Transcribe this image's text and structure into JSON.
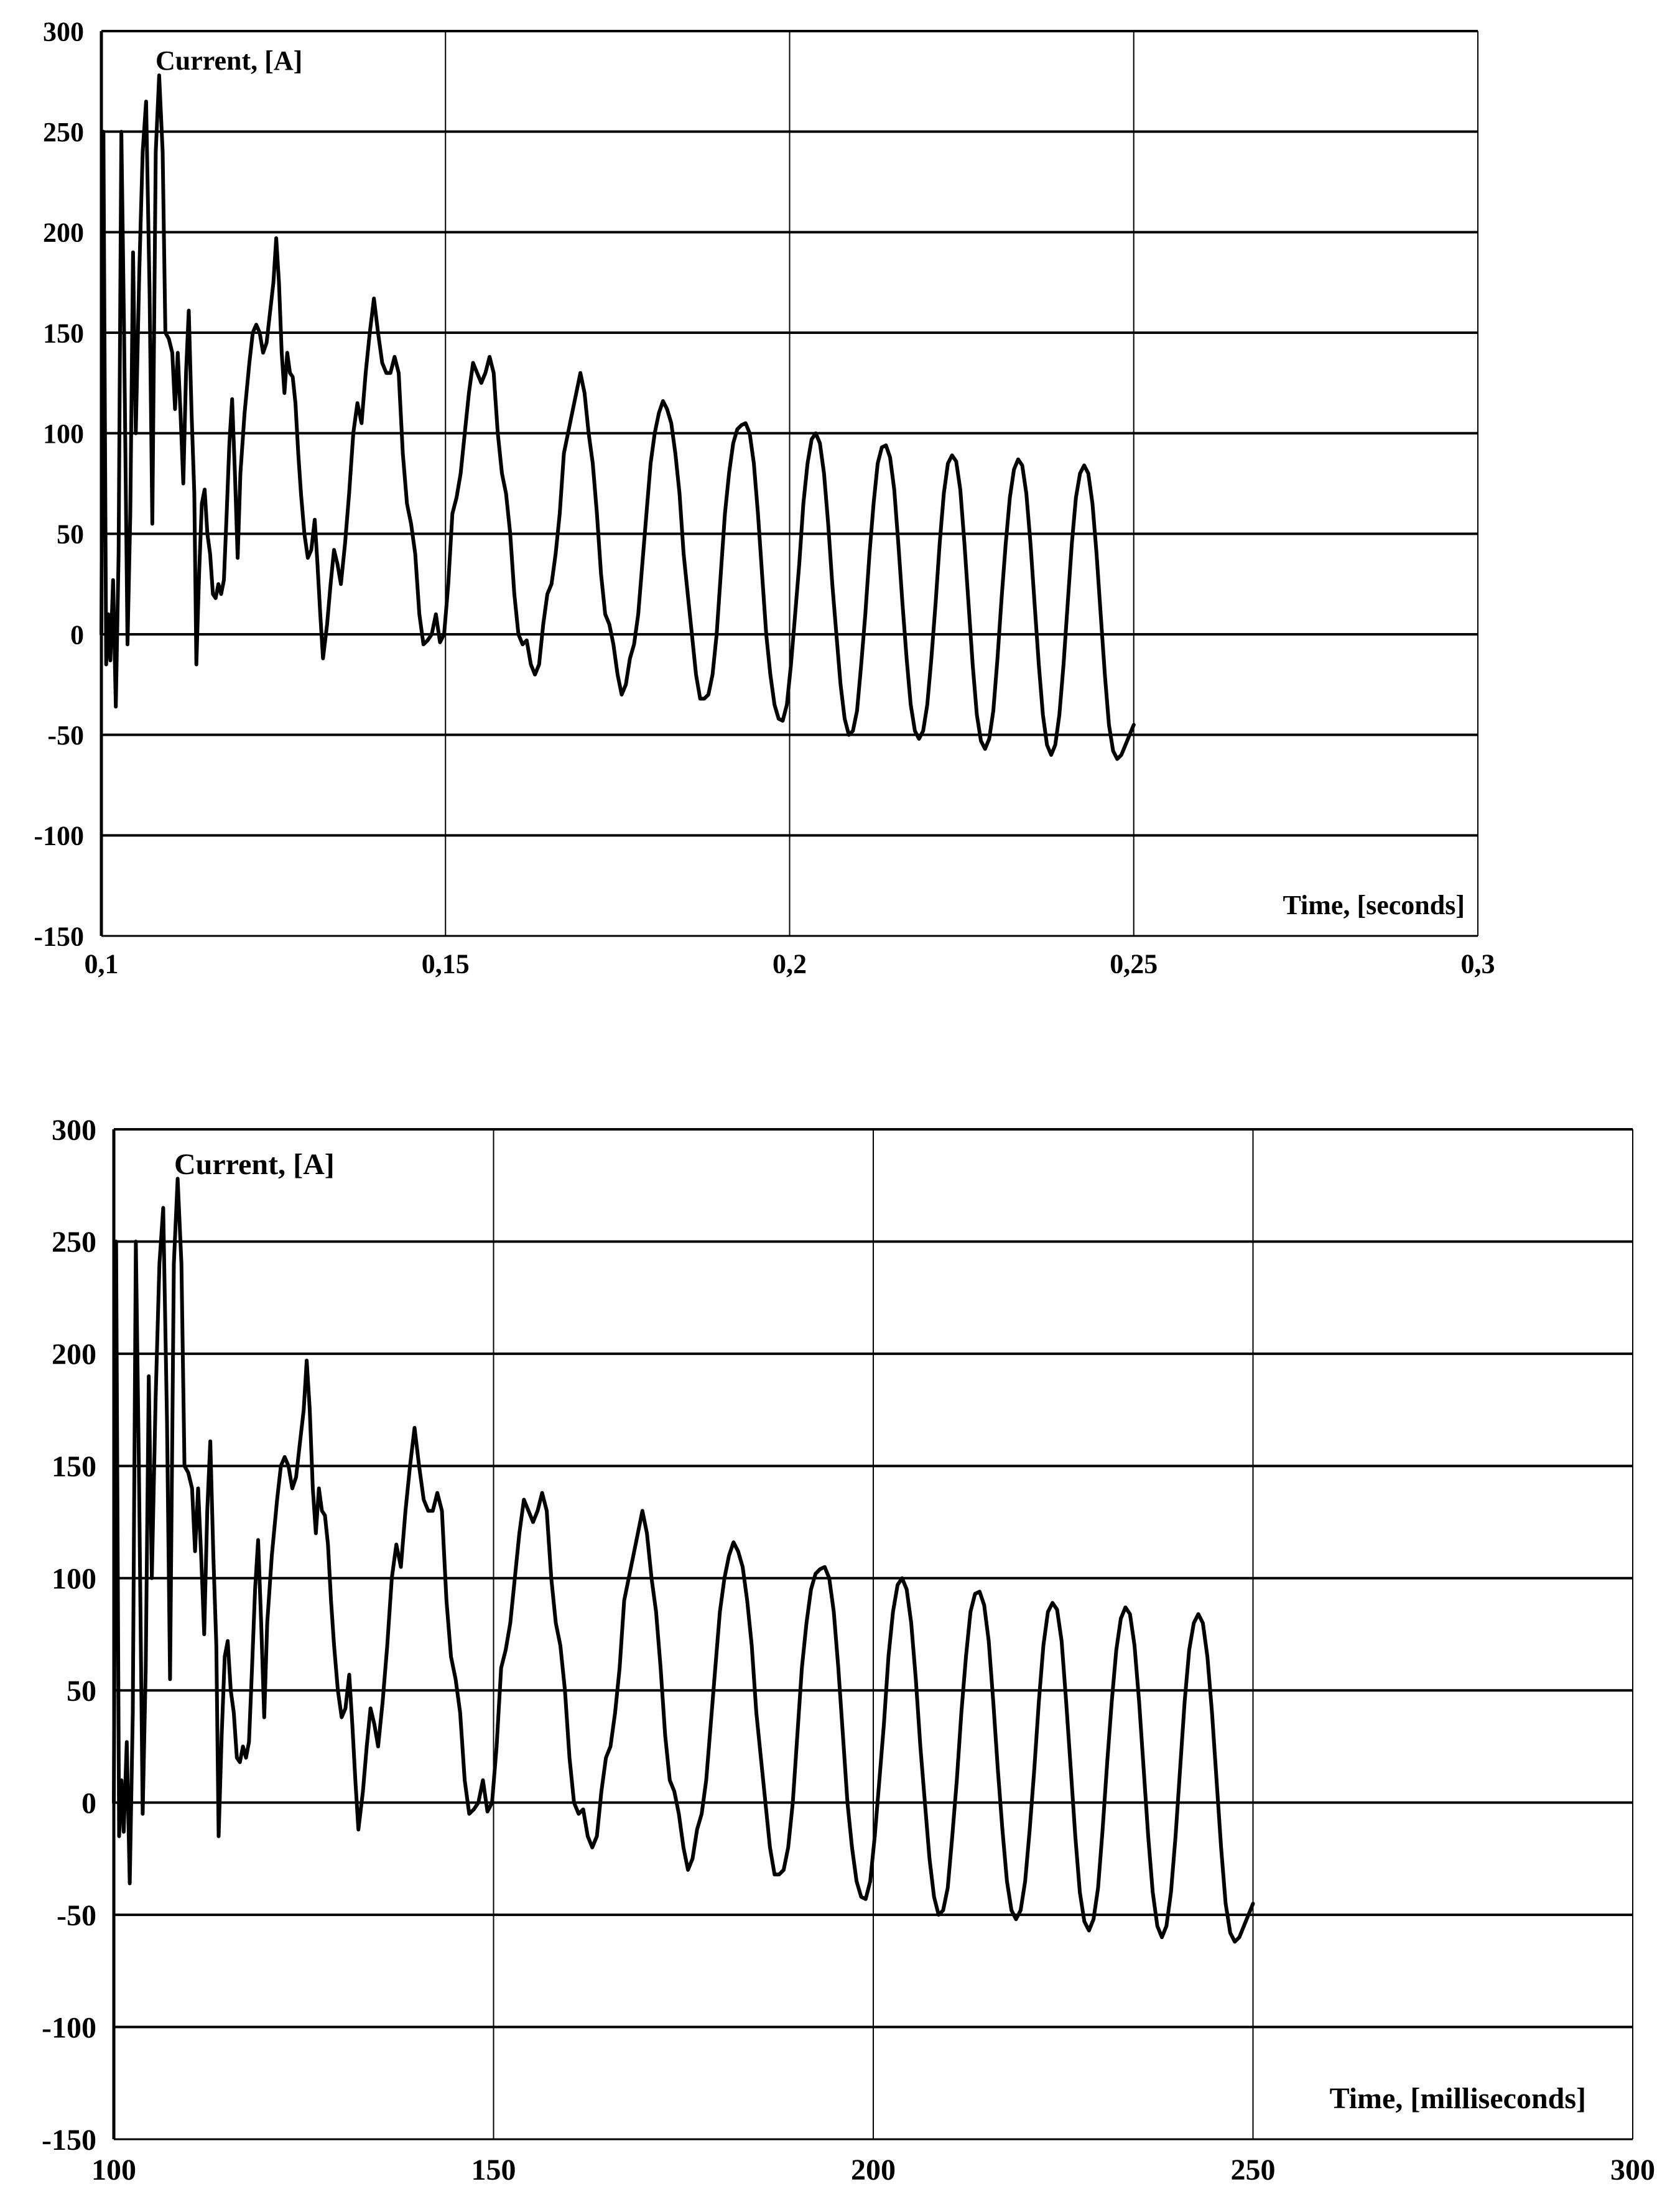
{
  "chart_data": [
    {
      "type": "line",
      "title": "",
      "ylabel": "Current,  [A]",
      "xlabel": "Time, [seconds]",
      "xlim": [
        0.1,
        0.3
      ],
      "ylim": [
        -150,
        300
      ],
      "x_ticks": [
        "0,1",
        "0,15",
        "0,2",
        "0,25",
        "0,3"
      ],
      "y_ticks": [
        "300",
        "250",
        "200",
        "150",
        "100",
        "50",
        "0",
        "-50",
        "-100",
        "-150"
      ],
      "x_unit_scale": 0.001,
      "grid": true,
      "legend": "none",
      "series": [
        {
          "color": "#000000",
          "points": [
            [
              100,
              0
            ],
            [
              100.3,
              250
            ],
            [
              100.7,
              -15
            ],
            [
              101,
              10
            ],
            [
              101.3,
              -13
            ],
            [
              101.7,
              27
            ],
            [
              102.1,
              -36
            ],
            [
              102.5,
              40
            ],
            [
              102.9,
              250
            ],
            [
              103.3,
              150
            ],
            [
              103.8,
              -5
            ],
            [
              104.2,
              60
            ],
            [
              104.6,
              190
            ],
            [
              105,
              100
            ],
            [
              105.5,
              180
            ],
            [
              106,
              240
            ],
            [
              106.5,
              265
            ],
            [
              107,
              170
            ],
            [
              107.4,
              55
            ],
            [
              107.9,
              240
            ],
            [
              108.4,
              278
            ],
            [
              108.9,
              240
            ],
            [
              109.3,
              150
            ],
            [
              109.8,
              147
            ],
            [
              110.3,
              140
            ],
            [
              110.7,
              112
            ],
            [
              111.1,
              140
            ],
            [
              111.5,
              110
            ],
            [
              111.9,
              75
            ],
            [
              112.3,
              130
            ],
            [
              112.7,
              161
            ],
            [
              113.1,
              110
            ],
            [
              113.5,
              70
            ],
            [
              113.8,
              -15
            ],
            [
              114.2,
              30
            ],
            [
              114.6,
              65
            ],
            [
              115,
              72
            ],
            [
              115.4,
              50
            ],
            [
              115.8,
              40
            ],
            [
              116.2,
              20
            ],
            [
              116.6,
              18
            ],
            [
              117,
              25
            ],
            [
              117.4,
              20
            ],
            [
              117.8,
              27
            ],
            [
              118.2,
              60
            ],
            [
              118.6,
              95
            ],
            [
              119,
              117
            ],
            [
              119.4,
              80
            ],
            [
              119.8,
              38
            ],
            [
              120.2,
              80
            ],
            [
              120.8,
              110
            ],
            [
              121.5,
              135
            ],
            [
              122,
              150
            ],
            [
              122.5,
              154
            ],
            [
              123,
              150
            ],
            [
              123.5,
              140
            ],
            [
              124,
              145
            ],
            [
              124.5,
              160
            ],
            [
              125,
              175
            ],
            [
              125.4,
              197
            ],
            [
              125.8,
              175
            ],
            [
              126.2,
              140
            ],
            [
              126.6,
              120
            ],
            [
              127,
              140
            ],
            [
              127.4,
              130
            ],
            [
              127.8,
              128
            ],
            [
              128.2,
              115
            ],
            [
              128.6,
              90
            ],
            [
              129,
              70
            ],
            [
              129.5,
              50
            ],
            [
              130,
              38
            ],
            [
              130.5,
              42
            ],
            [
              131,
              57
            ],
            [
              131.4,
              35
            ],
            [
              131.8,
              10
            ],
            [
              132.2,
              -12
            ],
            [
              132.8,
              5
            ],
            [
              133.3,
              25
            ],
            [
              133.8,
              42
            ],
            [
              134.3,
              35
            ],
            [
              134.8,
              25
            ],
            [
              135.4,
              45
            ],
            [
              136,
              70
            ],
            [
              136.6,
              100
            ],
            [
              137.2,
              115
            ],
            [
              137.8,
              105
            ],
            [
              138.4,
              130
            ],
            [
              139,
              150
            ],
            [
              139.6,
              167
            ],
            [
              140.2,
              150
            ],
            [
              140.8,
              135
            ],
            [
              141.4,
              130
            ],
            [
              142,
              130
            ],
            [
              142.6,
              138
            ],
            [
              143.2,
              130
            ],
            [
              143.8,
              90
            ],
            [
              144.4,
              65
            ],
            [
              145,
              55
            ],
            [
              145.6,
              40
            ],
            [
              146.2,
              10
            ],
            [
              146.8,
              -5
            ],
            [
              147.4,
              -3
            ],
            [
              148,
              0
            ],
            [
              148.6,
              10
            ],
            [
              149.2,
              -4
            ],
            [
              149.8,
              0
            ],
            [
              150.4,
              25
            ],
            [
              151,
              60
            ],
            [
              151.6,
              68
            ],
            [
              152.2,
              80
            ],
            [
              152.8,
              100
            ],
            [
              153.4,
              120
            ],
            [
              154,
              135
            ],
            [
              154.6,
              130
            ],
            [
              155.2,
              125
            ],
            [
              155.8,
              130
            ],
            [
              156.4,
              138
            ],
            [
              157,
              130
            ],
            [
              157.6,
              100
            ],
            [
              158.2,
              80
            ],
            [
              158.8,
              70
            ],
            [
              159.4,
              50
            ],
            [
              160,
              20
            ],
            [
              160.6,
              0
            ],
            [
              161.2,
              -5
            ],
            [
              161.8,
              -3
            ],
            [
              162.4,
              -15
            ],
            [
              163,
              -20
            ],
            [
              163.6,
              -15
            ],
            [
              164.2,
              5
            ],
            [
              164.8,
              20
            ],
            [
              165.4,
              25
            ],
            [
              166,
              40
            ],
            [
              166.6,
              60
            ],
            [
              167.2,
              90
            ],
            [
              167.8,
              100
            ],
            [
              168.4,
              110
            ],
            [
              169,
              120
            ],
            [
              169.6,
              130
            ],
            [
              170.2,
              120
            ],
            [
              170.8,
              100
            ],
            [
              171.4,
              85
            ],
            [
              172,
              60
            ],
            [
              172.6,
              30
            ],
            [
              173.2,
              10
            ],
            [
              173.8,
              5
            ],
            [
              174.4,
              -5
            ],
            [
              175,
              -20
            ],
            [
              175.6,
              -30
            ],
            [
              176.2,
              -25
            ],
            [
              176.8,
              -12
            ],
            [
              177.4,
              -5
            ],
            [
              178,
              10
            ],
            [
              178.6,
              35
            ],
            [
              179.2,
              60
            ],
            [
              179.8,
              85
            ],
            [
              180.4,
              100
            ],
            [
              181,
              110
            ],
            [
              181.6,
              116
            ],
            [
              182.2,
              112
            ],
            [
              182.8,
              105
            ],
            [
              183.4,
              90
            ],
            [
              184,
              70
            ],
            [
              184.6,
              40
            ],
            [
              185.2,
              20
            ],
            [
              185.8,
              0
            ],
            [
              186.4,
              -20
            ],
            [
              187,
              -32
            ],
            [
              187.6,
              -32
            ],
            [
              188.2,
              -30
            ],
            [
              188.8,
              -20
            ],
            [
              189.4,
              0
            ],
            [
              190,
              30
            ],
            [
              190.6,
              60
            ],
            [
              191.2,
              80
            ],
            [
              191.8,
              95
            ],
            [
              192.4,
              102
            ],
            [
              193,
              104
            ],
            [
              193.6,
              105
            ],
            [
              194.2,
              100
            ],
            [
              194.8,
              85
            ],
            [
              195.4,
              60
            ],
            [
              196,
              30
            ],
            [
              196.6,
              0
            ],
            [
              197.2,
              -20
            ],
            [
              197.8,
              -35
            ],
            [
              198.4,
              -42
            ],
            [
              199,
              -43
            ],
            [
              199.6,
              -35
            ],
            [
              200.2,
              -15
            ],
            [
              200.8,
              10
            ],
            [
              201.4,
              35
            ],
            [
              202,
              65
            ],
            [
              202.6,
              85
            ],
            [
              203.2,
              97
            ],
            [
              203.8,
              100
            ],
            [
              204.4,
              95
            ],
            [
              205,
              80
            ],
            [
              205.6,
              55
            ],
            [
              206.2,
              25
            ],
            [
              206.8,
              0
            ],
            [
              207.4,
              -25
            ],
            [
              208,
              -42
            ],
            [
              208.6,
              -50
            ],
            [
              209.2,
              -48
            ],
            [
              209.8,
              -38
            ],
            [
              210.4,
              -15
            ],
            [
              211,
              10
            ],
            [
              211.6,
              40
            ],
            [
              212.2,
              65
            ],
            [
              212.8,
              85
            ],
            [
              213.4,
              93
            ],
            [
              214,
              94
            ],
            [
              214.6,
              88
            ],
            [
              215.2,
              72
            ],
            [
              215.8,
              45
            ],
            [
              216.4,
              15
            ],
            [
              217,
              -12
            ],
            [
              217.6,
              -35
            ],
            [
              218.2,
              -48
            ],
            [
              218.8,
              -52
            ],
            [
              219.4,
              -48
            ],
            [
              220,
              -35
            ],
            [
              220.6,
              -12
            ],
            [
              221.2,
              15
            ],
            [
              221.8,
              45
            ],
            [
              222.4,
              70
            ],
            [
              223,
              85
            ],
            [
              223.6,
              89
            ],
            [
              224.2,
              86
            ],
            [
              224.8,
              72
            ],
            [
              225.4,
              45
            ],
            [
              226,
              15
            ],
            [
              226.6,
              -15
            ],
            [
              227.2,
              -40
            ],
            [
              227.8,
              -53
            ],
            [
              228.4,
              -57
            ],
            [
              229,
              -52
            ],
            [
              229.6,
              -38
            ],
            [
              230.2,
              -12
            ],
            [
              230.8,
              18
            ],
            [
              231.4,
              45
            ],
            [
              232,
              68
            ],
            [
              232.6,
              82
            ],
            [
              233.2,
              87
            ],
            [
              233.8,
              84
            ],
            [
              234.4,
              70
            ],
            [
              235,
              45
            ],
            [
              235.6,
              15
            ],
            [
              236.2,
              -15
            ],
            [
              236.8,
              -40
            ],
            [
              237.4,
              -55
            ],
            [
              238,
              -60
            ],
            [
              238.6,
              -55
            ],
            [
              239.2,
              -40
            ],
            [
              239.8,
              -15
            ],
            [
              240.4,
              15
            ],
            [
              241,
              45
            ],
            [
              241.6,
              68
            ],
            [
              242.2,
              80
            ],
            [
              242.8,
              84
            ],
            [
              243.4,
              80
            ],
            [
              244,
              65
            ],
            [
              244.6,
              40
            ],
            [
              245.2,
              10
            ],
            [
              245.8,
              -20
            ],
            [
              246.4,
              -45
            ],
            [
              247,
              -58
            ],
            [
              247.6,
              -62
            ],
            [
              248.2,
              -60
            ],
            [
              248.8,
              -55
            ],
            [
              249.4,
              -50
            ],
            [
              250,
              -45
            ]
          ]
        }
      ]
    },
    {
      "type": "line",
      "title": "",
      "ylabel": "Current,  [A]",
      "xlabel": "Time, [milliseconds]",
      "xlim": [
        100,
        300
      ],
      "ylim": [
        -150,
        300
      ],
      "x_ticks": [
        "100",
        "150",
        "200",
        "250",
        "300"
      ],
      "y_ticks": [
        "300",
        "250",
        "200",
        "150",
        "100",
        "50",
        "0",
        "-50",
        "-100",
        "-150"
      ],
      "x_unit_scale": 1,
      "grid": true,
      "legend": "none",
      "series": [
        {
          "color": "#000000",
          "points": "same as chart 0"
        }
      ]
    }
  ]
}
